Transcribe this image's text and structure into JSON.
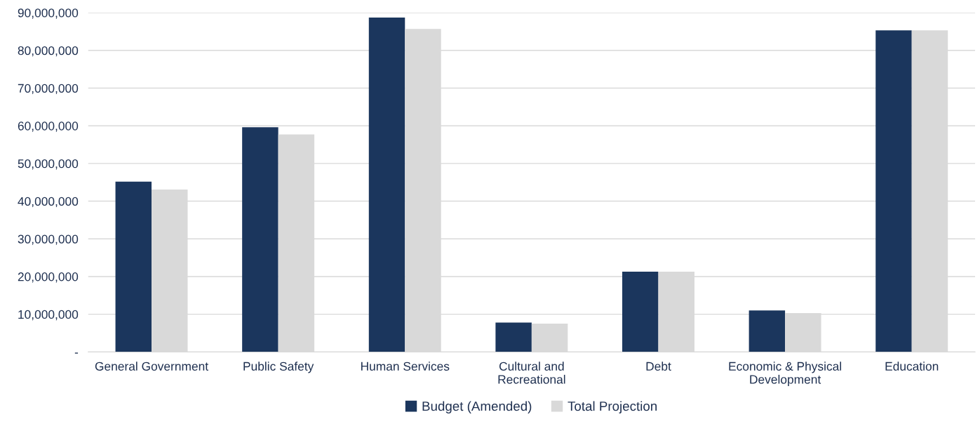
{
  "chart_data": {
    "type": "bar",
    "categories": [
      "General Government",
      "Public Safety",
      "Human Services",
      "Cultural and\nRecreational",
      "Debt",
      "Economic & Physical\nDevelopment",
      "Education"
    ],
    "series": [
      {
        "name": "Budget (Amended)",
        "color": "#1b365d",
        "values": [
          45200000,
          59600000,
          88700000,
          7800000,
          21300000,
          11000000,
          85300000
        ]
      },
      {
        "name": "Total Projection",
        "color": "#d9d9d9",
        "values": [
          43100000,
          57700000,
          85700000,
          7500000,
          21300000,
          10300000,
          85300000
        ]
      }
    ],
    "ylim": [
      0,
      90000000
    ],
    "yticks": [
      {
        "value": 0,
        "label": "-"
      },
      {
        "value": 10000000,
        "label": "10,000,000"
      },
      {
        "value": 20000000,
        "label": "20,000,000"
      },
      {
        "value": 30000000,
        "label": "30,000,000"
      },
      {
        "value": 40000000,
        "label": "40,000,000"
      },
      {
        "value": 50000000,
        "label": "50,000,000"
      },
      {
        "value": 60000000,
        "label": "60,000,000"
      },
      {
        "value": 70000000,
        "label": "70,000,000"
      },
      {
        "value": 80000000,
        "label": "80,000,000"
      },
      {
        "value": 90000000,
        "label": "90,000,000"
      }
    ],
    "grid": "y",
    "legend": "bottom"
  }
}
